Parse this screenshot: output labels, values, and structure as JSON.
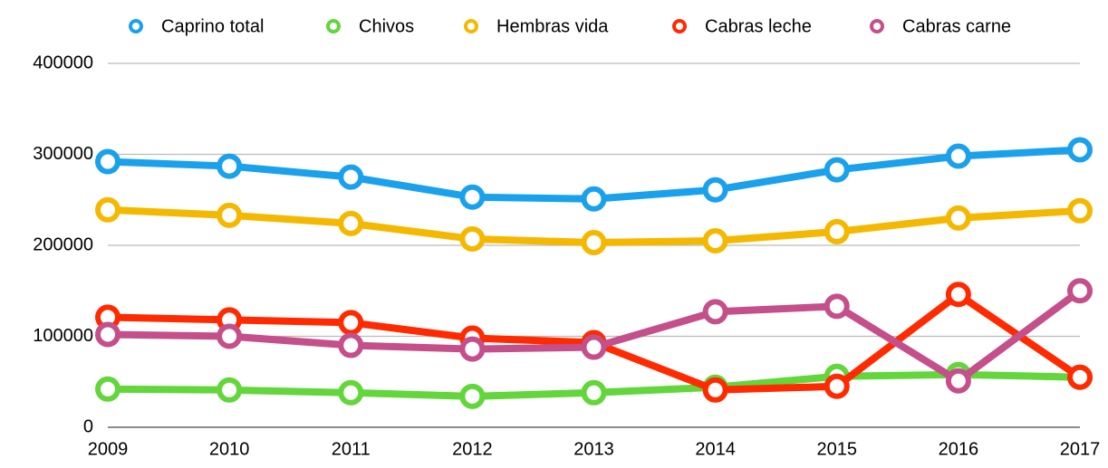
{
  "chart_data": {
    "type": "line",
    "categories": [
      "2009",
      "2010",
      "2011",
      "2012",
      "2013",
      "2014",
      "2015",
      "2016",
      "2017"
    ],
    "series": [
      {
        "name": "Caprino total",
        "color": "#1aa1ec",
        "values": [
          292000,
          287000,
          275000,
          253000,
          251000,
          261000,
          283000,
          298000,
          305000
        ]
      },
      {
        "name": "Chivos",
        "color": "#62d63b",
        "values": [
          42000,
          41000,
          38000,
          34000,
          38000,
          44000,
          56000,
          58000,
          55000
        ]
      },
      {
        "name": "Hembras vida",
        "color": "#f5b800",
        "values": [
          239000,
          233000,
          224000,
          207000,
          203000,
          205000,
          215000,
          230000,
          238000
        ]
      },
      {
        "name": "Cabras leche",
        "color": "#ff2a00",
        "values": [
          121000,
          118000,
          115000,
          98000,
          93000,
          41000,
          45000,
          146000,
          55000
        ]
      },
      {
        "name": "Cabras carne",
        "color": "#c44f8b",
        "values": [
          102000,
          100000,
          90000,
          86000,
          88000,
          127000,
          133000,
          51000,
          150000
        ]
      }
    ],
    "ylim": [
      0,
      400000
    ],
    "yticks": [
      0,
      100000,
      200000,
      300000,
      400000
    ],
    "grid": true,
    "legend": "top"
  }
}
